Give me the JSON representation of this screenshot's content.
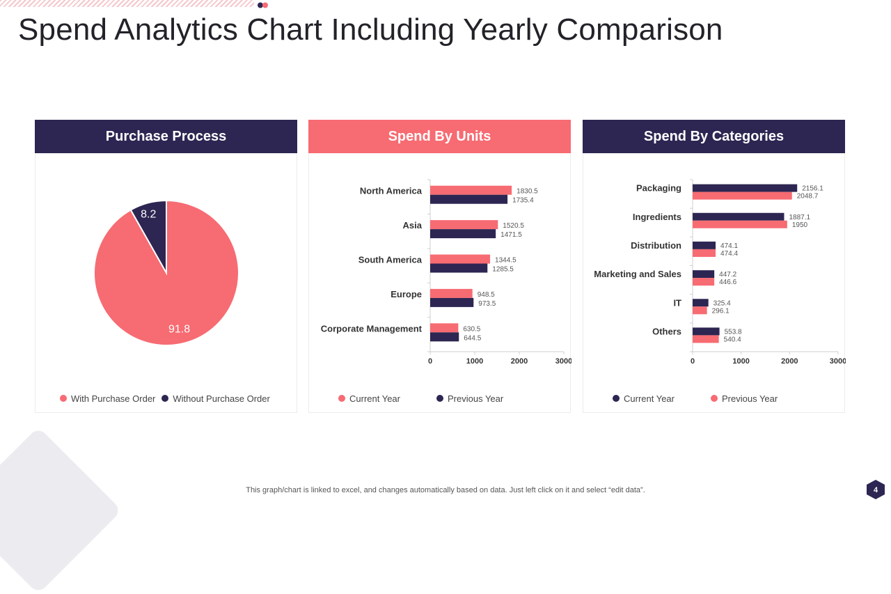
{
  "title": "Spend Analytics Chart Including Yearly Comparison",
  "colors": {
    "navy": "#2d2652",
    "coral": "#f76b72"
  },
  "panels": {
    "purchase": {
      "header": "Purchase Process"
    },
    "units": {
      "header": "Spend By Units"
    },
    "categories": {
      "header": "Spend By Categories"
    }
  },
  "chart_data": [
    {
      "type": "pie",
      "title": "Purchase Process",
      "slices": [
        {
          "label": "With Purchase Order",
          "value": 91.8,
          "color": "#f76b72"
        },
        {
          "label": "Without Purchase Order",
          "value": 8.2,
          "color": "#2d2652"
        }
      ],
      "legend": "bottom"
    },
    {
      "type": "bar",
      "orientation": "horizontal",
      "title": "Spend By Units",
      "categories": [
        "North America",
        "Asia",
        "South America",
        "Europe",
        "Corporate Management"
      ],
      "series": [
        {
          "name": "Current Year",
          "color": "#f76b72",
          "values": [
            1830.5,
            1520.5,
            1344.5,
            948.5,
            630.5
          ]
        },
        {
          "name": "Previous Year",
          "color": "#2d2652",
          "values": [
            1735.4,
            1471.5,
            1285.5,
            973.5,
            644.5
          ]
        }
      ],
      "xlim": [
        0,
        3000
      ],
      "xticks": [
        "0",
        "1000",
        "2000",
        "3000"
      ],
      "legend": "bottom"
    },
    {
      "type": "bar",
      "orientation": "horizontal",
      "title": "Spend By Categories",
      "categories": [
        "Packaging",
        "Ingredients",
        "Distribution",
        "Marketing and Sales",
        "IT",
        "Others"
      ],
      "series": [
        {
          "name": "Current Year",
          "color": "#2d2652",
          "values": [
            2156.1,
            1887.1,
            474.1,
            447.2,
            325.4,
            553.8
          ]
        },
        {
          "name": "Previous Year",
          "color": "#f76b72",
          "values": [
            2048.7,
            1950,
            474.4,
            446.6,
            296.1,
            540.4
          ]
        }
      ],
      "xlim": [
        0,
        3000
      ],
      "xticks": [
        "0",
        "1000",
        "2000",
        "3000"
      ],
      "legend": "bottom"
    }
  ],
  "footnote": "This graph/chart is linked to excel,  and changes automatically based on data. Just left click on it and select “edit data”.",
  "page_number": "4"
}
